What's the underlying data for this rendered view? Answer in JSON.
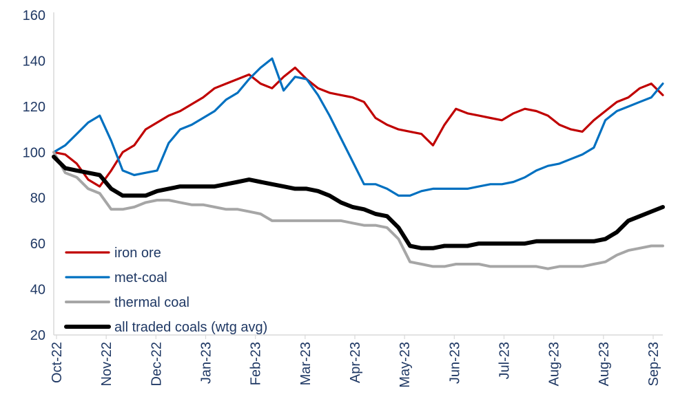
{
  "chart_data": {
    "type": "line",
    "title": "",
    "xlabel": "",
    "ylabel": "",
    "ylim": [
      20,
      160
    ],
    "yticks": [
      "20",
      "40",
      "60",
      "80",
      "100",
      "120",
      "140",
      "160"
    ],
    "xticks": [
      "Oct-22",
      "Nov-22",
      "Dec-22",
      "Jan-23",
      "Feb-23",
      "Mar-23",
      "Apr-23",
      "May-23",
      "Jun-23",
      "Jul-23",
      "Aug-23",
      "Aug-23",
      "Sep-23"
    ],
    "grid": false,
    "legend_position": "bottom-left",
    "x": [
      "2022-10-03",
      "2022-10-10",
      "2022-10-17",
      "2022-10-24",
      "2022-10-31",
      "2022-11-07",
      "2022-11-14",
      "2022-11-21",
      "2022-11-28",
      "2022-12-05",
      "2022-12-12",
      "2022-12-19",
      "2022-12-26",
      "2023-01-02",
      "2023-01-09",
      "2023-01-16",
      "2023-01-23",
      "2023-01-30",
      "2023-02-06",
      "2023-02-13",
      "2023-02-20",
      "2023-02-27",
      "2023-03-06",
      "2023-03-13",
      "2023-03-20",
      "2023-03-27",
      "2023-04-03",
      "2023-04-10",
      "2023-04-17",
      "2023-04-24",
      "2023-05-01",
      "2023-05-08",
      "2023-05-15",
      "2023-05-22",
      "2023-05-29",
      "2023-06-05",
      "2023-06-12",
      "2023-06-19",
      "2023-06-26",
      "2023-07-03",
      "2023-07-10",
      "2023-07-17",
      "2023-07-24",
      "2023-07-31",
      "2023-08-07",
      "2023-08-14",
      "2023-08-21",
      "2023-08-28",
      "2023-09-04",
      "2023-09-11",
      "2023-09-18",
      "2023-09-25",
      "2023-10-02",
      "2023-10-09"
    ],
    "series": [
      {
        "name": "iron ore",
        "color": "#c00000",
        "values": [
          100,
          99,
          95,
          88,
          85,
          92,
          100,
          103,
          110,
          113,
          116,
          118,
          121,
          124,
          128,
          130,
          132,
          134,
          130,
          128,
          133,
          137,
          132,
          128,
          126,
          125,
          124,
          122,
          115,
          112,
          110,
          109,
          108,
          103,
          112,
          119,
          117,
          116,
          115,
          114,
          117,
          119,
          118,
          116,
          112,
          110,
          109,
          114,
          118,
          122,
          124,
          128,
          130,
          125
        ]
      },
      {
        "name": "met-coal",
        "color": "#0070c0",
        "values": [
          100,
          103,
          108,
          113,
          116,
          105,
          92,
          90,
          91,
          92,
          104,
          110,
          112,
          115,
          118,
          123,
          126,
          132,
          137,
          141,
          127,
          133,
          132,
          125,
          116,
          106,
          96,
          86,
          86,
          84,
          81,
          81,
          83,
          84,
          84,
          84,
          84,
          85,
          86,
          86,
          87,
          89,
          92,
          94,
          95,
          97,
          99,
          102,
          114,
          118,
          120,
          122,
          124,
          130
        ]
      },
      {
        "name": "thermal coal",
        "color": "#a6a6a6",
        "values": [
          100,
          91,
          89,
          84,
          82,
          75,
          75,
          76,
          78,
          79,
          79,
          78,
          77,
          77,
          76,
          75,
          75,
          74,
          73,
          70,
          70,
          70,
          70,
          70,
          70,
          70,
          69,
          68,
          68,
          67,
          62,
          52,
          51,
          50,
          50,
          51,
          51,
          51,
          50,
          50,
          50,
          50,
          50,
          49,
          50,
          50,
          50,
          51,
          52,
          55,
          57,
          58,
          59,
          59
        ]
      },
      {
        "name": "all traded coals (wtg avg)",
        "color": "#000000",
        "values": [
          98,
          93,
          92,
          91,
          90,
          84,
          81,
          81,
          81,
          83,
          84,
          85,
          85,
          85,
          85,
          86,
          87,
          88,
          87,
          86,
          85,
          84,
          84,
          83,
          81,
          78,
          76,
          75,
          73,
          72,
          67,
          59,
          58,
          58,
          59,
          59,
          59,
          60,
          60,
          60,
          60,
          60,
          61,
          61,
          61,
          61,
          61,
          61,
          62,
          65,
          70,
          72,
          74,
          76
        ]
      }
    ]
  }
}
